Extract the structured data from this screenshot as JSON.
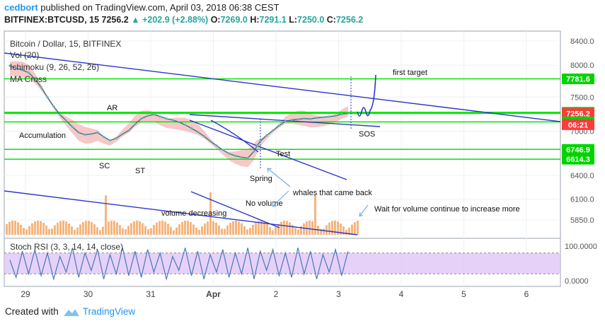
{
  "header": {
    "author": "cedbort",
    "published_text": "published on TradingView.com, April 03, 2018 06:38 CEST",
    "symbol": "BITFINEX:BTCUSD, 15",
    "last": "7256.2",
    "change": "▲ +202.9 (+2.88%)",
    "o_label": "O:",
    "o_val": "7269.0",
    "h_label": "H:",
    "h_val": "7291.1",
    "l_label": "L:",
    "l_val": "7250.0",
    "c_label": "C:",
    "c_val": "7256.2"
  },
  "legend": {
    "title": "Bitcoin / Dollar, 15, BITFINEX",
    "vol": "Vol (20)",
    "ichimoku": "Ichimoku (9, 26, 52, 26)",
    "ma": "MA Cross"
  },
  "footer": {
    "created_with": "Created with",
    "brand": "TradingView"
  },
  "colors": {
    "level_line": "#00e600",
    "trend_line": "#2b36c9",
    "price_label": "#ff3b3b",
    "level_label": "#00d400",
    "stoch_band": "#e0c6f7",
    "volume": "#f5a25d",
    "cloud_red": "#f6b4b4",
    "cloud_green": "#b6e6b6"
  },
  "chart_data": [
    {
      "type": "line",
      "title": "Bitcoin / Dollar, 15, BITFINEX",
      "scale": "log",
      "ylim": [
        5700,
        8550
      ],
      "y_ticks": [
        8400.0,
        8000.0,
        7500.0,
        7000.0,
        6750.0,
        6400.0,
        6100.0,
        5850.0
      ],
      "y_tick_labels": [
        "8400.0",
        "8000.0",
        "7500.0",
        "7000.0",
        "6750.0",
        "6400.0",
        "6100.0",
        "5850.0"
      ],
      "x_ticks": [
        "29",
        "30",
        "31",
        "Apr",
        "2",
        "3",
        "4",
        "5",
        "6"
      ],
      "x_tick_days": [
        0,
        1,
        2,
        3,
        4,
        5,
        6,
        7,
        8
      ],
      "xlim": [
        -0.25,
        8.5
      ],
      "series": [
        {
          "x": [
            -0.25,
            -0.15,
            -0.05,
            0.05,
            0.15,
            0.25,
            0.35,
            0.45,
            0.55,
            0.65,
            0.75,
            0.85,
            0.95,
            1.05,
            1.15,
            1.25,
            1.35,
            1.45,
            1.55,
            1.65,
            1.75,
            1.85,
            1.95,
            2.05,
            2.15,
            2.25,
            2.35,
            2.45,
            2.55,
            2.65,
            2.75,
            2.85,
            2.95,
            3.05,
            3.15,
            3.25,
            3.35,
            3.45,
            3.55,
            3.65,
            3.7,
            3.75,
            3.85,
            3.95,
            4.05,
            4.15,
            4.25,
            4.35,
            4.45,
            4.55,
            4.65,
            4.75,
            4.85,
            4.95,
            5.05,
            5.15
          ],
          "values": [
            7990,
            7950,
            7920,
            7880,
            7780,
            7650,
            7500,
            7360,
            7240,
            7150,
            7060,
            6980,
            6950,
            6960,
            6980,
            6920,
            6870,
            6900,
            6960,
            7010,
            7100,
            7180,
            7220,
            7240,
            7210,
            7180,
            7160,
            7130,
            7090,
            7040,
            6990,
            6930,
            6860,
            6800,
            6740,
            6690,
            6660,
            6640,
            6630,
            6720,
            6800,
            6860,
            6940,
            7010,
            7080,
            7140,
            7160,
            7170,
            7180,
            7175,
            7190,
            7200,
            7210,
            7220,
            7245,
            7256.2
          ]
        }
      ],
      "current_price": 7256.2,
      "price_labels": [
        7781.6,
        7272.7,
        7256.2,
        7132.8,
        6746.9,
        6614.3
      ],
      "countdown": "06:21",
      "horizontal_levels": [
        7781.6,
        7272.7,
        7256.2,
        7132.8,
        6746.9,
        6614.3
      ],
      "annotations": [
        "first target",
        "AR",
        "Accumulation",
        "SC",
        "ST",
        "Spring",
        "Test",
        "SOS",
        "whales that came back",
        "No volume",
        "volume decreasing",
        "Wait for volume continue to increase more"
      ]
    },
    {
      "type": "line",
      "title": "Stoch RSI (3, 3, 14, 14, close)",
      "ylim": [
        -10,
        110
      ],
      "y_ticks": [
        100.0,
        0.0
      ],
      "y_tick_labels": [
        "100.0000",
        "0.0000"
      ],
      "band": [
        20,
        80
      ],
      "series": [
        {
          "x": [
            -0.25,
            -0.15,
            -0.05,
            0.05,
            0.15,
            0.25,
            0.35,
            0.45,
            0.55,
            0.65,
            0.75,
            0.85,
            0.95,
            1.05,
            1.15,
            1.25,
            1.35,
            1.45,
            1.55,
            1.65,
            1.75,
            1.85,
            1.95,
            2.05,
            2.15,
            2.25,
            2.35,
            2.45,
            2.55,
            2.65,
            2.75,
            2.85,
            2.95,
            3.05,
            3.15,
            3.25,
            3.35,
            3.45,
            3.55,
            3.65,
            3.75,
            3.85,
            3.95,
            4.05,
            4.15,
            4.25,
            4.35,
            4.45,
            4.55,
            4.65,
            4.75,
            4.85,
            4.95,
            5.05,
            5.15
          ],
          "values": [
            60,
            10,
            85,
            20,
            90,
            15,
            80,
            5,
            70,
            25,
            95,
            10,
            80,
            30,
            90,
            5,
            75,
            20,
            95,
            15,
            85,
            10,
            90,
            25,
            80,
            5,
            70,
            30,
            95,
            15,
            85,
            5,
            75,
            25,
            90,
            10,
            80,
            20,
            95,
            5,
            85,
            30,
            90,
            15,
            80,
            10,
            95,
            20,
            85,
            5,
            75,
            25,
            90,
            15,
            85
          ]
        }
      ]
    }
  ]
}
